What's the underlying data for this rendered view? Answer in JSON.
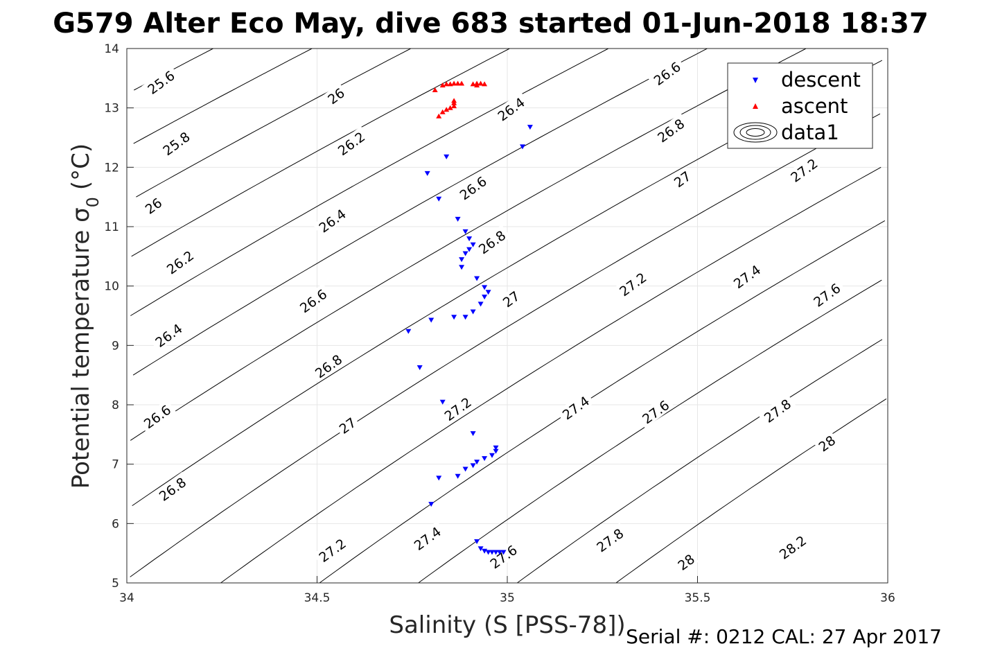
{
  "chart_data": {
    "type": "scatter",
    "title": "G579 Alter Eco May, dive 683 started 01-Jun-2018 18:37",
    "xlabel": "Salinity (S [PSS-78])",
    "ylabel_main": "Potential temperature σ",
    "ylabel_sub": "0",
    "ylabel_unit": "(°C)",
    "xlim": [
      34,
      36
    ],
    "ylim": [
      5,
      14
    ],
    "xticks": [
      34,
      34.5,
      35,
      35.5,
      36
    ],
    "xtick_labels": [
      "34",
      "34.5",
      "35",
      "35.5",
      "36"
    ],
    "yticks": [
      5,
      6,
      7,
      8,
      9,
      10,
      11,
      12,
      13,
      14
    ],
    "ytick_labels": [
      "5",
      "6",
      "7",
      "8",
      "9",
      "10",
      "11",
      "12",
      "13",
      "14"
    ],
    "grid": true,
    "legend_position": "top-right",
    "legend": [
      "descent",
      "ascent",
      "data1"
    ],
    "footer": "Serial #: 0212  CAL: 27 Apr 2017",
    "colors": {
      "descent": "#0000ff",
      "ascent": "#ff0000",
      "contour": "#000000",
      "grid": "#e6e6e6"
    },
    "series": [
      {
        "name": "descent",
        "marker": "triangle-down",
        "points": [
          [
            35.06,
            12.68
          ],
          [
            35.04,
            12.35
          ],
          [
            34.84,
            12.18
          ],
          [
            34.79,
            11.9
          ],
          [
            34.82,
            11.47
          ],
          [
            34.87,
            11.13
          ],
          [
            34.89,
            10.92
          ],
          [
            34.9,
            10.8
          ],
          [
            34.91,
            10.7
          ],
          [
            34.9,
            10.62
          ],
          [
            34.89,
            10.55
          ],
          [
            34.88,
            10.45
          ],
          [
            34.88,
            10.32
          ],
          [
            34.92,
            10.13
          ],
          [
            34.94,
            9.98
          ],
          [
            34.95,
            9.9
          ],
          [
            34.94,
            9.82
          ],
          [
            34.93,
            9.7
          ],
          [
            34.91,
            9.57
          ],
          [
            34.89,
            9.48
          ],
          [
            34.86,
            9.48
          ],
          [
            34.8,
            9.43
          ],
          [
            34.74,
            9.24
          ],
          [
            34.77,
            8.63
          ],
          [
            34.83,
            8.05
          ],
          [
            34.91,
            7.52
          ],
          [
            34.97,
            7.28
          ],
          [
            34.97,
            7.22
          ],
          [
            34.96,
            7.15
          ],
          [
            34.94,
            7.1
          ],
          [
            34.92,
            7.04
          ],
          [
            34.91,
            6.98
          ],
          [
            34.89,
            6.92
          ],
          [
            34.87,
            6.8
          ],
          [
            34.82,
            6.77
          ],
          [
            34.8,
            6.33
          ],
          [
            34.92,
            5.7
          ],
          [
            34.93,
            5.58
          ],
          [
            34.94,
            5.54
          ],
          [
            34.95,
            5.52
          ],
          [
            34.96,
            5.52
          ],
          [
            34.97,
            5.52
          ],
          [
            34.98,
            5.52
          ],
          [
            34.99,
            5.52
          ]
        ]
      },
      {
        "name": "ascent",
        "marker": "triangle-up",
        "points": [
          [
            34.81,
            13.3
          ],
          [
            34.83,
            13.38
          ],
          [
            34.84,
            13.4
          ],
          [
            34.85,
            13.4
          ],
          [
            34.86,
            13.41
          ],
          [
            34.87,
            13.41
          ],
          [
            34.88,
            13.41
          ],
          [
            34.91,
            13.4
          ],
          [
            34.92,
            13.41
          ],
          [
            34.93,
            13.41
          ],
          [
            34.94,
            13.4
          ],
          [
            34.92,
            13.38
          ],
          [
            34.82,
            12.86
          ],
          [
            34.83,
            12.93
          ],
          [
            34.84,
            12.97
          ],
          [
            34.85,
            13.0
          ],
          [
            34.86,
            13.03
          ],
          [
            34.86,
            13.08
          ],
          [
            34.86,
            13.12
          ]
        ]
      }
    ],
    "contours": {
      "name": "data1",
      "levels": [
        25.6,
        25.8,
        26,
        26.2,
        26.4,
        26.6,
        26.8,
        27,
        27.2,
        27.4,
        27.6,
        27.8,
        28,
        28.2
      ],
      "labels": [
        {
          "text": "25.6",
          "x": 34.09,
          "y": 13.43
        },
        {
          "text": "25.8",
          "x": 34.13,
          "y": 12.4
        },
        {
          "text": "26",
          "x": 34.07,
          "y": 11.35
        },
        {
          "text": "26.2",
          "x": 34.14,
          "y": 10.4
        },
        {
          "text": "26.4",
          "x": 34.11,
          "y": 9.17
        },
        {
          "text": "26.6",
          "x": 34.08,
          "y": 7.8
        },
        {
          "text": "26.8",
          "x": 34.12,
          "y": 6.58
        },
        {
          "text": "26",
          "x": 34.55,
          "y": 13.2
        },
        {
          "text": "26.2",
          "x": 34.59,
          "y": 12.4
        },
        {
          "text": "26.4",
          "x": 34.54,
          "y": 11.1
        },
        {
          "text": "26.6",
          "x": 34.49,
          "y": 9.75
        },
        {
          "text": "26.8",
          "x": 34.53,
          "y": 8.65
        },
        {
          "text": "27",
          "x": 34.58,
          "y": 7.65
        },
        {
          "text": "27.2",
          "x": 34.54,
          "y": 5.55
        },
        {
          "text": "26.4",
          "x": 35.01,
          "y": 12.98
        },
        {
          "text": "26.6",
          "x": 34.91,
          "y": 11.65
        },
        {
          "text": "26.8",
          "x": 34.96,
          "y": 10.74
        },
        {
          "text": "27",
          "x": 35.01,
          "y": 9.78
        },
        {
          "text": "27.2",
          "x": 34.87,
          "y": 7.93
        },
        {
          "text": "27.4",
          "x": 34.79,
          "y": 5.75
        },
        {
          "text": "27.6",
          "x": 34.99,
          "y": 5.44
        },
        {
          "text": "26.6",
          "x": 35.42,
          "y": 13.58
        },
        {
          "text": "26.8",
          "x": 35.43,
          "y": 12.62
        },
        {
          "text": "27",
          "x": 35.46,
          "y": 11.8
        },
        {
          "text": "27.2",
          "x": 35.33,
          "y": 10.03
        },
        {
          "text": "27.4",
          "x": 35.18,
          "y": 7.95
        },
        {
          "text": "27.8",
          "x": 35.27,
          "y": 5.72
        },
        {
          "text": "27.2",
          "x": 35.78,
          "y": 11.95
        },
        {
          "text": "27.4",
          "x": 35.63,
          "y": 10.16
        },
        {
          "text": "27.6",
          "x": 35.39,
          "y": 7.88
        },
        {
          "text": "27.6",
          "x": 35.84,
          "y": 9.85
        },
        {
          "text": "27.8",
          "x": 35.71,
          "y": 7.9
        },
        {
          "text": "28",
          "x": 35.47,
          "y": 5.35
        },
        {
          "text": "28",
          "x": 35.84,
          "y": 7.35
        },
        {
          "text": "28.2",
          "x": 35.75,
          "y": 5.6
        }
      ]
    }
  }
}
